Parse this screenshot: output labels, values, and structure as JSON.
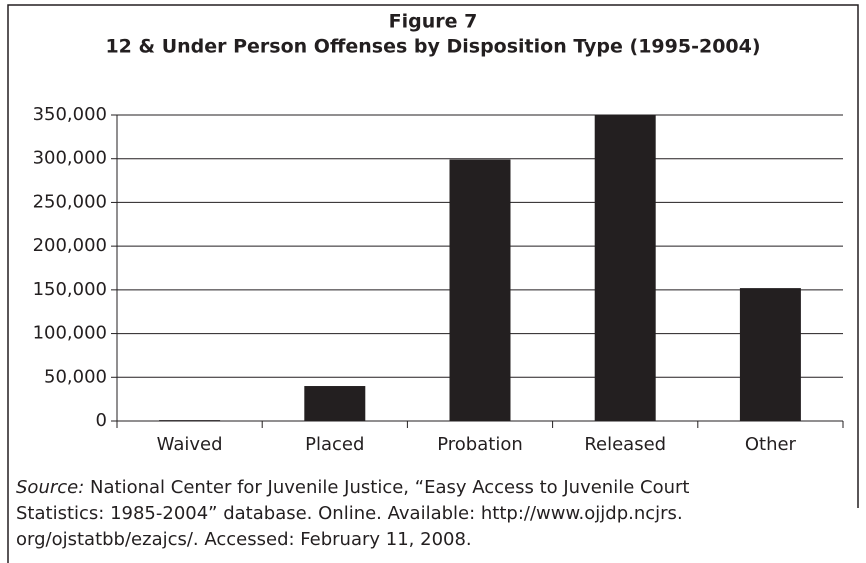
{
  "chart_data": {
    "type": "bar",
    "title": "Figure 7",
    "subtitle": "12 & Under Person Offenses by Disposition Type (1995-2004)",
    "categories": [
      "Waived",
      "Placed",
      "Probation",
      "Released",
      "Other"
    ],
    "values": [
      1000,
      40000,
      299000,
      350000,
      152000
    ],
    "color": "#231f20",
    "ylim": [
      0,
      350000
    ],
    "yticks": [
      0,
      {
        "value": 50000,
        "label": "50,000"
      },
      {
        "value": 100000,
        "label": "100,000"
      },
      {
        "value": 150000,
        "label": "150,000"
      },
      {
        "value": 200000,
        "label": "200,000"
      },
      {
        "value": 250000,
        "label": "250,000"
      },
      {
        "value": 300000,
        "label": "300,000"
      },
      {
        "value": 350000,
        "label": "350,000"
      }
    ],
    "grid": true
  },
  "source": {
    "label": "Source:",
    "lines": [
      "National Center for Juvenile Justice, “Easy Access to Juvenile Court",
      "Statistics: 1985-2004” database. Online. Available: http://www.ojjdp.ncjrs.",
      "org/ojstatbb/ezajcs/. Accessed: February 11, 2008."
    ]
  }
}
